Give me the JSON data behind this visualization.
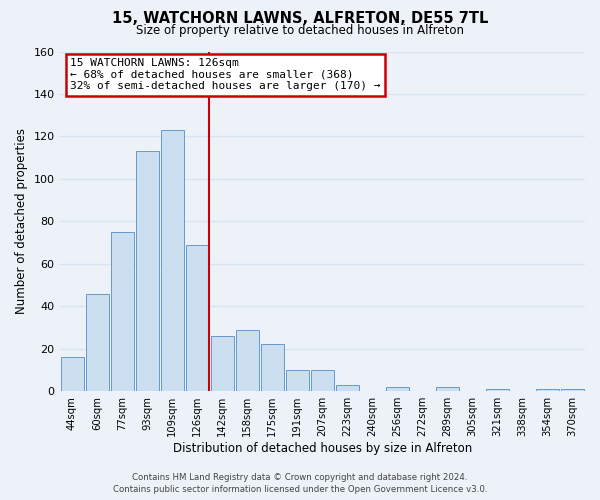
{
  "title": "15, WATCHORN LAWNS, ALFRETON, DE55 7TL",
  "subtitle": "Size of property relative to detached houses in Alfreton",
  "xlabel": "Distribution of detached houses by size in Alfreton",
  "ylabel": "Number of detached properties",
  "bar_labels": [
    "44sqm",
    "60sqm",
    "77sqm",
    "93sqm",
    "109sqm",
    "126sqm",
    "142sqm",
    "158sqm",
    "175sqm",
    "191sqm",
    "207sqm",
    "223sqm",
    "240sqm",
    "256sqm",
    "272sqm",
    "289sqm",
    "305sqm",
    "321sqm",
    "338sqm",
    "354sqm",
    "370sqm"
  ],
  "bar_values": [
    16,
    46,
    75,
    113,
    123,
    69,
    26,
    29,
    22,
    10,
    10,
    3,
    0,
    2,
    0,
    2,
    0,
    1,
    0,
    1,
    1
  ],
  "bar_color": "#ccdff0",
  "bar_edge_color": "#6699cc",
  "highlight_bar_index": 5,
  "highlight_line_color": "#cc0000",
  "ylim": [
    0,
    160
  ],
  "yticks": [
    0,
    20,
    40,
    60,
    80,
    100,
    120,
    140,
    160
  ],
  "annotation_title": "15 WATCHORN LAWNS: 126sqm",
  "annotation_line1": "← 68% of detached houses are smaller (368)",
  "annotation_line2": "32% of semi-detached houses are larger (170) →",
  "annotation_box_color": "#ffffff",
  "annotation_box_edge": "#cc0000",
  "footer_line1": "Contains HM Land Registry data © Crown copyright and database right 2024.",
  "footer_line2": "Contains public sector information licensed under the Open Government Licence v3.0.",
  "background_color": "#edf2f9",
  "grid_color": "#d8e4f0"
}
